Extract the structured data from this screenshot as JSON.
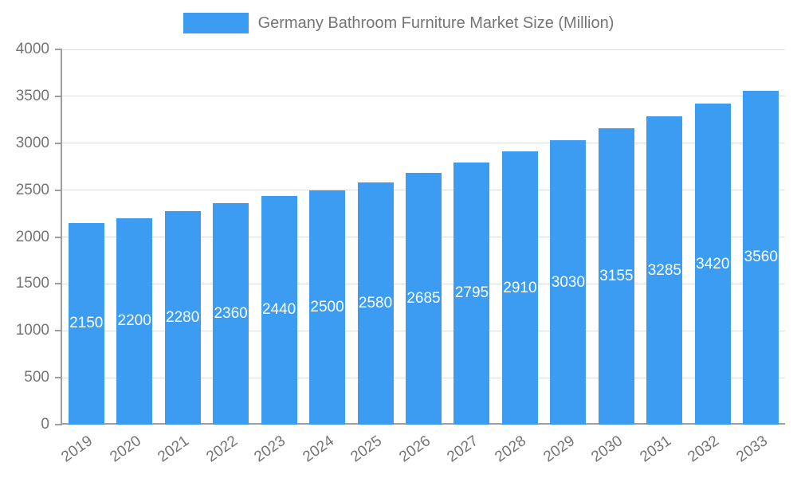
{
  "chart_data": {
    "type": "bar",
    "title": "Germany Bathroom Furniture Market Size (Million)",
    "categories": [
      "2019",
      "2020",
      "2021",
      "2022",
      "2023",
      "2024",
      "2025",
      "2026",
      "2027",
      "2028",
      "2029",
      "2030",
      "2031",
      "2032",
      "2033"
    ],
    "values": [
      2150,
      2200,
      2280,
      2360,
      2440,
      2500,
      2580,
      2685,
      2795,
      2910,
      3030,
      3155,
      3285,
      3420,
      3560
    ],
    "xlabel": "",
    "ylabel": "",
    "ylim": [
      0,
      4000
    ],
    "ytick_step": 500,
    "ytick_labels": [
      "0",
      "500",
      "1000",
      "1500",
      "2000",
      "2500",
      "3000",
      "3500",
      "4000"
    ],
    "grid": true,
    "legend_position": "top-center",
    "bar_color": "#3b9cf2",
    "bar_value_label_color": "#ffffff"
  },
  "colors": {
    "grid": "#dddddd",
    "axis": "#9e9e9e",
    "tick_text": "#757575",
    "background": "#ffffff"
  }
}
